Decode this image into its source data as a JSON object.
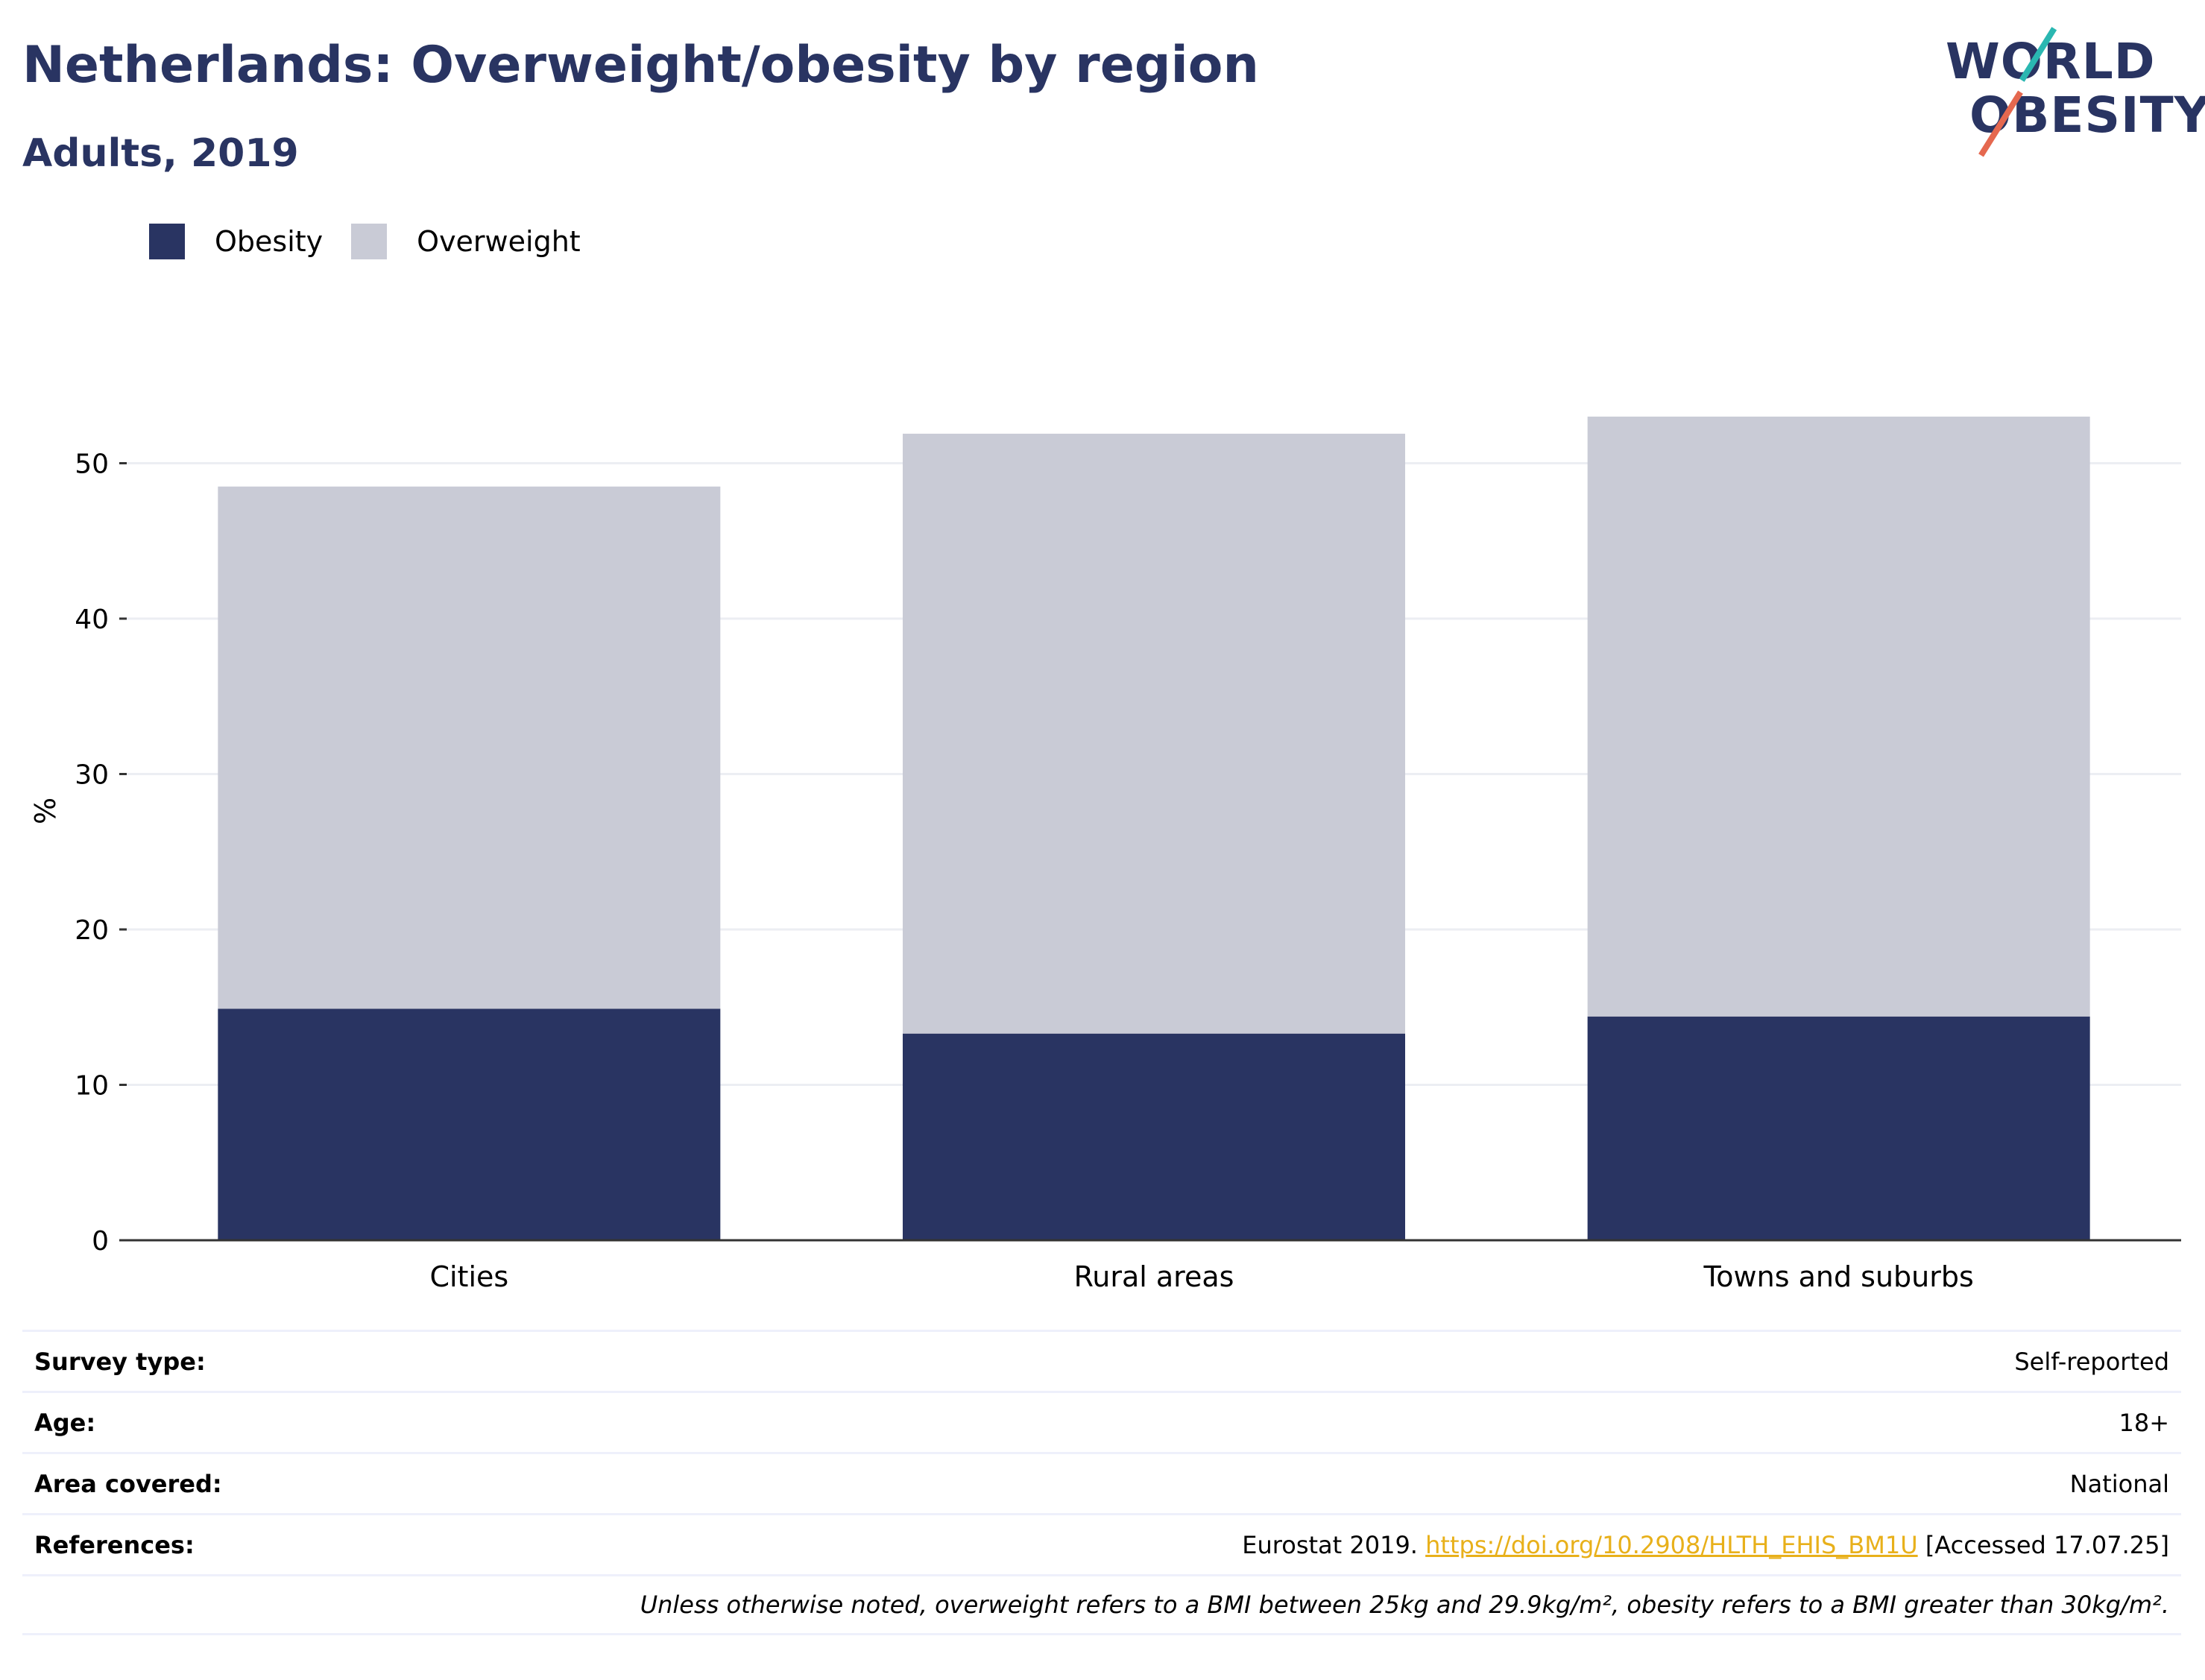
{
  "title": "Netherlands: Overweight/obesity by region",
  "subtitle": "Adults, 2019",
  "logo": {
    "line1": "WORLD",
    "line2": "OBESITY"
  },
  "legend": [
    {
      "label": "Obesity",
      "color": "#293462"
    },
    {
      "label": "Overweight",
      "color": "#c9cbd6"
    }
  ],
  "colors": {
    "obesity": "#293462",
    "overweight": "#c9cbd6",
    "title": "#293462",
    "link": "#e8b01a",
    "grid": "#eceef3",
    "axis": "#333333"
  },
  "chart_data": {
    "type": "bar",
    "stacked": true,
    "categories": [
      "Cities",
      "Rural areas",
      "Towns and suburbs"
    ],
    "series": [
      {
        "name": "Obesity",
        "values": [
          14.9,
          13.3,
          14.4
        ]
      },
      {
        "name": "Overweight",
        "values": [
          33.6,
          38.6,
          38.6
        ]
      }
    ],
    "totals": [
      48.5,
      51.9,
      53.0
    ],
    "ylabel": "%",
    "xlabel": "",
    "ylim": [
      0,
      56
    ],
    "yticks": [
      0,
      10,
      20,
      30,
      40,
      50
    ],
    "grid": true,
    "legend_position": "top-left"
  },
  "info": {
    "survey_type_label": "Survey type:",
    "survey_type_value": "Self-reported",
    "age_label": "Age:",
    "age_value": "18+",
    "area_label": "Area covered:",
    "area_value": "National",
    "references_label": "References:",
    "references_prefix": "Eurostat 2019.",
    "references_link": "https://doi.org/10.2908/HLTH_EHIS_BM1U",
    "references_suffix": "[Accessed 17.07.25]",
    "footnote": "Unless otherwise noted, overweight refers to a BMI between 25kg and 29.9kg/m², obesity refers to a BMI greater than 30kg/m²."
  }
}
